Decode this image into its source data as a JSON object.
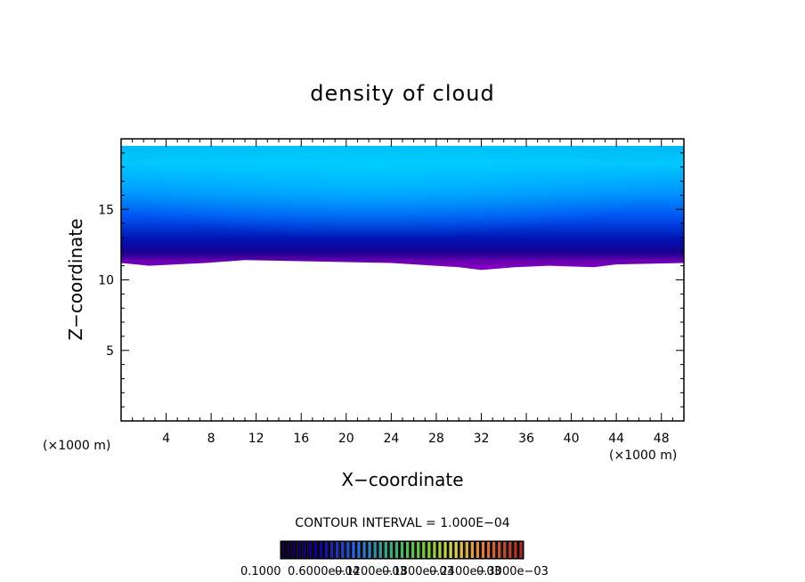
{
  "chart_data": {
    "type": "heatmap",
    "title": "density of cloud",
    "xlabel": "X−coordinate",
    "ylabel": "Z−coordinate",
    "x_unit": "(×1000 m)",
    "y_unit": "(×1000 m)",
    "xlim": [
      0,
      50
    ],
    "ylim": [
      0,
      20
    ],
    "x_ticks": [
      4,
      8,
      12,
      16,
      20,
      24,
      28,
      32,
      36,
      40,
      44,
      48
    ],
    "y_ticks": [
      5,
      10,
      15
    ],
    "contour_interval": "CONTOUR INTERVAL = 1.000E−04",
    "colorbar_labels": [
      "0.1000",
      "0.6000e−04",
      "0.1200e−03",
      "0.1800e−03",
      "0.2400e−03",
      "0.3000e−03"
    ],
    "cloud_top_z": 19.5,
    "cloud_base_z": [
      [
        0,
        11.2
      ],
      [
        2.5,
        11.0
      ],
      [
        7.5,
        11.2
      ],
      [
        11,
        11.4
      ],
      [
        24,
        11.2
      ],
      [
        26,
        11.1
      ],
      [
        30,
        10.9
      ],
      [
        32,
        10.7
      ],
      [
        35,
        10.9
      ],
      [
        38,
        11.0
      ],
      [
        42,
        10.9
      ],
      [
        44,
        11.1
      ],
      [
        50,
        11.2
      ]
    ],
    "colors": {
      "upper": "#00c8ff",
      "mid": "#0060ff",
      "dark": "#000088",
      "base": "#8000c0"
    }
  }
}
